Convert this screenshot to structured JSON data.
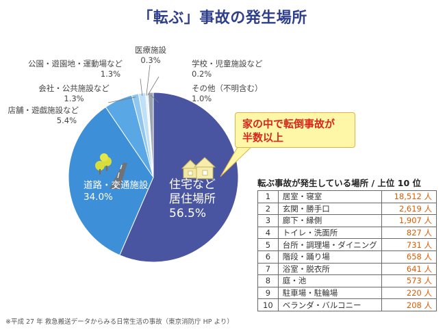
{
  "title": "「転ぶ」事故の発生場所",
  "chart_data": {
    "type": "pie",
    "title": "「転ぶ」事故の発生場所",
    "slices": [
      {
        "label": [
          "住宅など",
          "居住場所"
        ],
        "value": 56.5,
        "display": "56.5%",
        "color": "#4a55a2"
      },
      {
        "label": [
          "道路・交通施設"
        ],
        "value": 34.0,
        "display": "34.0%",
        "color": "#3d8fd8"
      },
      {
        "label": [
          "店舗・遊戯施設など"
        ],
        "value": 5.4,
        "display": "5.4%",
        "color": "#5aa7e6"
      },
      {
        "label": [
          "会社・公共施設など"
        ],
        "value": 1.3,
        "display": "1.3%",
        "color": "#8fc6f0"
      },
      {
        "label": [
          "公園・遊園地・運動場など"
        ],
        "value": 1.3,
        "display": "1.3%",
        "color": "#bfe0f7"
      },
      {
        "label": [
          "医療施設"
        ],
        "value": 0.3,
        "display": "0.3%",
        "color": "#dfeefa"
      },
      {
        "label": [
          "学校・児童施設など"
        ],
        "value": 0.2,
        "display": "0.2%",
        "color": "#c8d4e3"
      },
      {
        "label": [
          "その他（不明含む）"
        ],
        "value": 1.0,
        "display": "1.0%",
        "color": "#9aa4b0"
      }
    ]
  },
  "callout": {
    "line1": "家の中で転倒事故が",
    "line2": "半数以上"
  },
  "table": {
    "title": "転ぶ事故が発生している場所 / 上位 10 位",
    "rows": [
      {
        "rank": "1",
        "place": "居室・寝室",
        "count": "18,512 人"
      },
      {
        "rank": "2",
        "place": "玄関・勝手口",
        "count": "2,619 人"
      },
      {
        "rank": "3",
        "place": "廊下・縁側",
        "count": "1,907 人"
      },
      {
        "rank": "4",
        "place": "トイレ・洗面所",
        "count": "827 人"
      },
      {
        "rank": "5",
        "place": "台所・調理場・ダイニング",
        "count": "731 人"
      },
      {
        "rank": "6",
        "place": "階段・踊り場",
        "count": "658 人"
      },
      {
        "rank": "7",
        "place": "浴室・脱衣所",
        "count": "641 人"
      },
      {
        "rank": "8",
        "place": "庭・池",
        "count": "573 人"
      },
      {
        "rank": "9",
        "place": "駐車場・駐輪場",
        "count": "220 人"
      },
      {
        "rank": "10",
        "place": "ベランダ・バルコニー",
        "count": "208 人"
      }
    ]
  },
  "source": "※平成 27 年 救急搬送データからみる日常生活の事故（東京消防庁 HP より）",
  "icons": [
    "house-icon",
    "road-icon"
  ]
}
